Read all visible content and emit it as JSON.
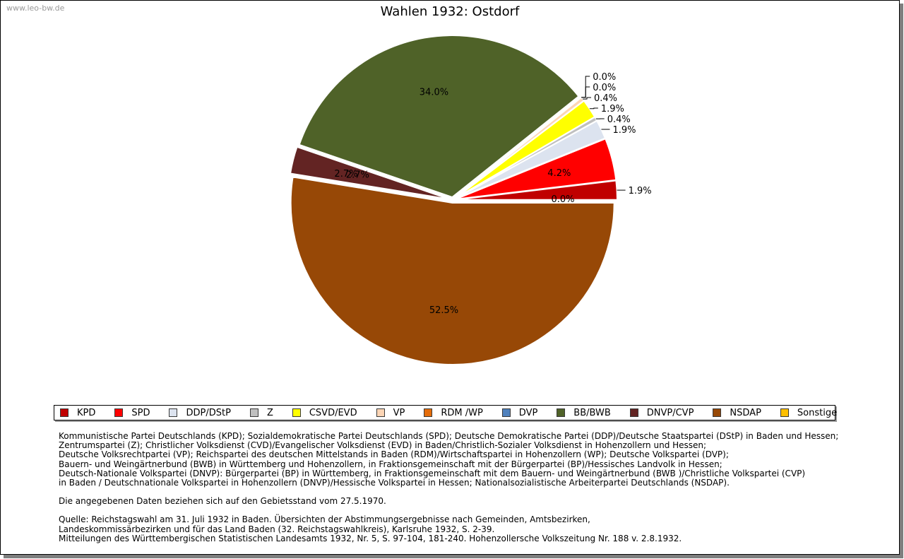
{
  "watermark": "www.leo-bw.de",
  "chart_data": {
    "type": "pie",
    "title": "Wahlen 1932: Ostdorf",
    "slices": [
      {
        "name": "KPD",
        "value": 1.9,
        "label": "1.9%",
        "color": "#c00000"
      },
      {
        "name": "SPD",
        "value": 4.2,
        "label": "4.2%",
        "color": "#ff0000"
      },
      {
        "name": "DDP/DStP",
        "value": 1.9,
        "label": "1.9%",
        "color": "#dce3ef"
      },
      {
        "name": "Z",
        "value": 0.4,
        "label": "0.4%",
        "color": "#bfbfbf"
      },
      {
        "name": "CSVD/EVD",
        "value": 1.9,
        "label": "1.9%",
        "color": "#ffff00"
      },
      {
        "name": "VP",
        "value": 0.4,
        "label": "0.4%",
        "color": "#fcd5b5"
      },
      {
        "name": "RDM /WP",
        "value": 0.0,
        "label": "0.0%",
        "color": "#e46c0a"
      },
      {
        "name": "DVP",
        "value": 0.0,
        "label": "0.0%",
        "color": "#4f81bd"
      },
      {
        "name": "BB/BWB",
        "value": 34.0,
        "label": "34.0%",
        "color": "#4f6228"
      },
      {
        "name": "DNVP/CVP",
        "value": 2.7,
        "label": "2.7%",
        "color": "#632423"
      },
      {
        "name": "NSDAP",
        "value": 52.5,
        "label": "52.5%",
        "color": "#974806"
      },
      {
        "name": "Sonstige",
        "value": 0.0,
        "label": "0.0%",
        "color": "#ffc000"
      }
    ],
    "legend_position": "bottom"
  },
  "notes": {
    "parties": [
      "Kommunistische Partei Deutschlands (KPD); Sozialdemokratische Partei Deutschlands (SPD); Deutsche Demokratische Partei (DDP)/Deutsche Staatspartei (DStP) in Baden und Hessen;",
      "Zentrumspartei (Z); Christlicher Volksdienst (CVD)/Evangelischer Volksdienst (EVD) in Baden/Christlich-Sozialer Volksdienst in Hohenzollern und Hessen;",
      "Deutsche Volksrechtpartei (VP); Reichspartei des deutschen Mittelstands in Baden (RDM)/Wirtschaftspartei in Hohenzollern (WP); Deutsche Volkspartei (DVP);",
      "Bauern- und Weingärtnerbund (BWB) in Württemberg und Hohenzollern, in Fraktionsgemeinschaft mit der Bürgerpartei (BP)/Hessisches Landvolk in Hessen;",
      "Deutsch-Nationale Volkspartei (DNVP): Bürgerpartei (BP) in Württemberg, in Fraktionsgemeinschaft mit dem Bauern- und Weingärtnerbund (BWB )/Christliche Volkspartei (CVP)",
      "in Baden / Deutschnationale Volkspartei in Hohenzollern (DNVP)/Hessische Volkspartei in Hessen; Nationalsozialistische Arbeiterpartei Deutschlands (NSDAP)."
    ],
    "territory": "Die angegebenen Daten beziehen sich auf den Gebietsstand vom 27.5.1970.",
    "source": [
      "Quelle: Reichstagswahl am 31. Juli 1932 in Baden. Übersichten der Abstimmungsergebnisse nach Gemeinden, Amtsbezirken,",
      "Landeskommissärbezirken und für das Land Baden (32. Reichstagswahlkreis), Karlsruhe 1932, S. 2-39.",
      "Mitteilungen des Württembergischen Statistischen Landesamts 1932, Nr. 5, S. 97-104, 181-240. Hohenzollersche Volkszeitung Nr. 188 v. 2.8.1932."
    ]
  }
}
